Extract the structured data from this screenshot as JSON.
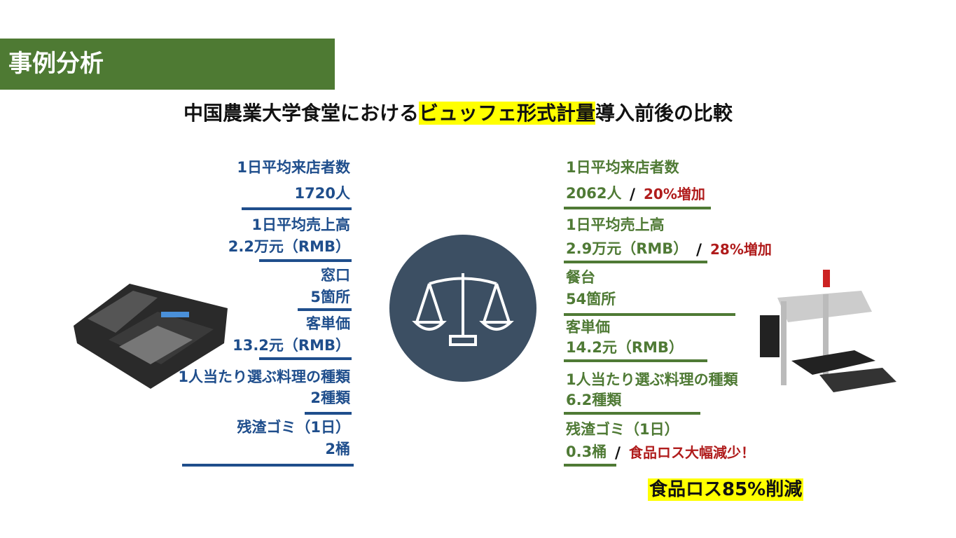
{
  "header": {
    "title": "事例分析"
  },
  "subtitle": {
    "before": "中国農業大学食堂における",
    "highlight": "ビュッフェ形式計量",
    "after": "導入前後の比較"
  },
  "separator": "/",
  "before": [
    {
      "label": "1日平均来店者数",
      "value": "1720人"
    },
    {
      "label": "1日平均売上高",
      "value": "2.2万元（RMB）"
    },
    {
      "label": "窓口",
      "value": "5箇所"
    },
    {
      "label": "客単価",
      "value": "13.2元（RMB）"
    },
    {
      "label": "1人当たり選ぶ料理の種類",
      "value": "2種類"
    },
    {
      "label": "残渣ゴミ（1日）",
      "value": "2桶"
    }
  ],
  "after": [
    {
      "label": "1日平均来店者数",
      "value": "2062人",
      "note": "20%増加"
    },
    {
      "label": "1日平均売上高",
      "value": "2.9万元（RMB）",
      "note": "28%増加"
    },
    {
      "label": "餐台",
      "value": "54箇所"
    },
    {
      "label": "客単価",
      "value": "14.2元（RMB）"
    },
    {
      "label": "1人当たり選ぶ料理の種類",
      "value": "6.2種類"
    },
    {
      "label": "残渣ゴミ（1日）",
      "value": "0.3桶",
      "note": "食品ロス大幅減少！"
    }
  ],
  "summary": "食品ロス85%削減"
}
